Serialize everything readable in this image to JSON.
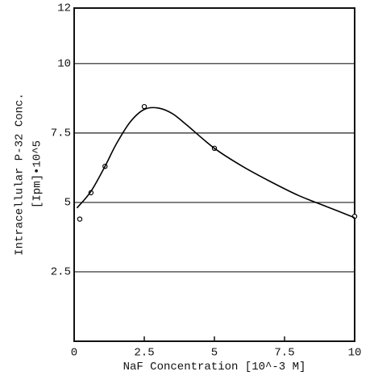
{
  "chart_data": {
    "type": "scatter",
    "xlabel": "NaF Concentration [10^-3 M]",
    "ylabel": [
      "Intracellular P-32 Conc.",
      "[Ipm]•10^5"
    ],
    "xlim": [
      0,
      10
    ],
    "xticks": [
      0,
      2.5,
      5,
      7.5,
      10
    ],
    "ylim": [
      0,
      12
    ],
    "yticks": [
      2.5,
      5,
      7.5,
      10,
      12
    ],
    "grid": true,
    "series": [
      {
        "type": "scatter",
        "color": "#000000",
        "x": [
          0.2,
          0.6,
          1.1,
          2.5,
          5,
          10
        ],
        "values": [
          4.4,
          5.35,
          6.3,
          8.45,
          6.95,
          4.5
        ]
      },
      {
        "type": "line",
        "color": "#000000",
        "x": [
          0.1,
          0.6,
          1.1,
          1.5,
          2,
          2.5,
          3,
          3.5,
          4,
          5,
          6,
          7,
          8,
          9,
          10
        ],
        "values": [
          4.8,
          5.4,
          6.3,
          7.1,
          7.9,
          8.35,
          8.4,
          8.2,
          7.8,
          6.95,
          6.3,
          5.75,
          5.25,
          4.85,
          4.45
        ]
      }
    ]
  }
}
